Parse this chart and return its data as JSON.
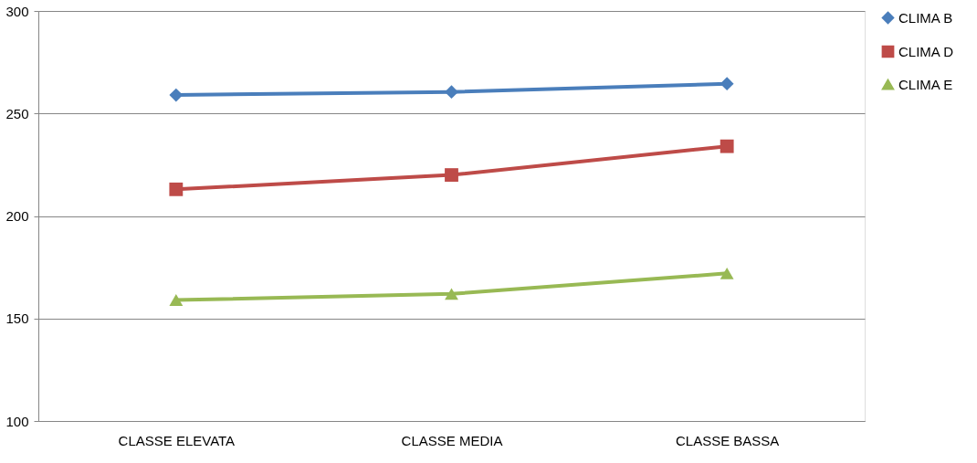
{
  "chart_data": {
    "type": "line",
    "categories": [
      "CLASSE ELEVATA",
      "CLASSE MEDIA",
      "CLASSE BASSA"
    ],
    "series": [
      {
        "name": "CLIMA B",
        "color": "#4a7ebb",
        "marker": "diamond",
        "values": [
          259,
          260.5,
          264.5
        ]
      },
      {
        "name": "CLIMA D",
        "color": "#be4b48",
        "marker": "square",
        "values": [
          213,
          220,
          234
        ]
      },
      {
        "name": "CLIMA E",
        "color": "#98b954",
        "marker": "triangle",
        "values": [
          159,
          162,
          172
        ]
      }
    ],
    "ylim": [
      100,
      300
    ],
    "yticks": [
      100,
      150,
      200,
      250,
      300
    ],
    "grid": "y",
    "legend": "right"
  }
}
